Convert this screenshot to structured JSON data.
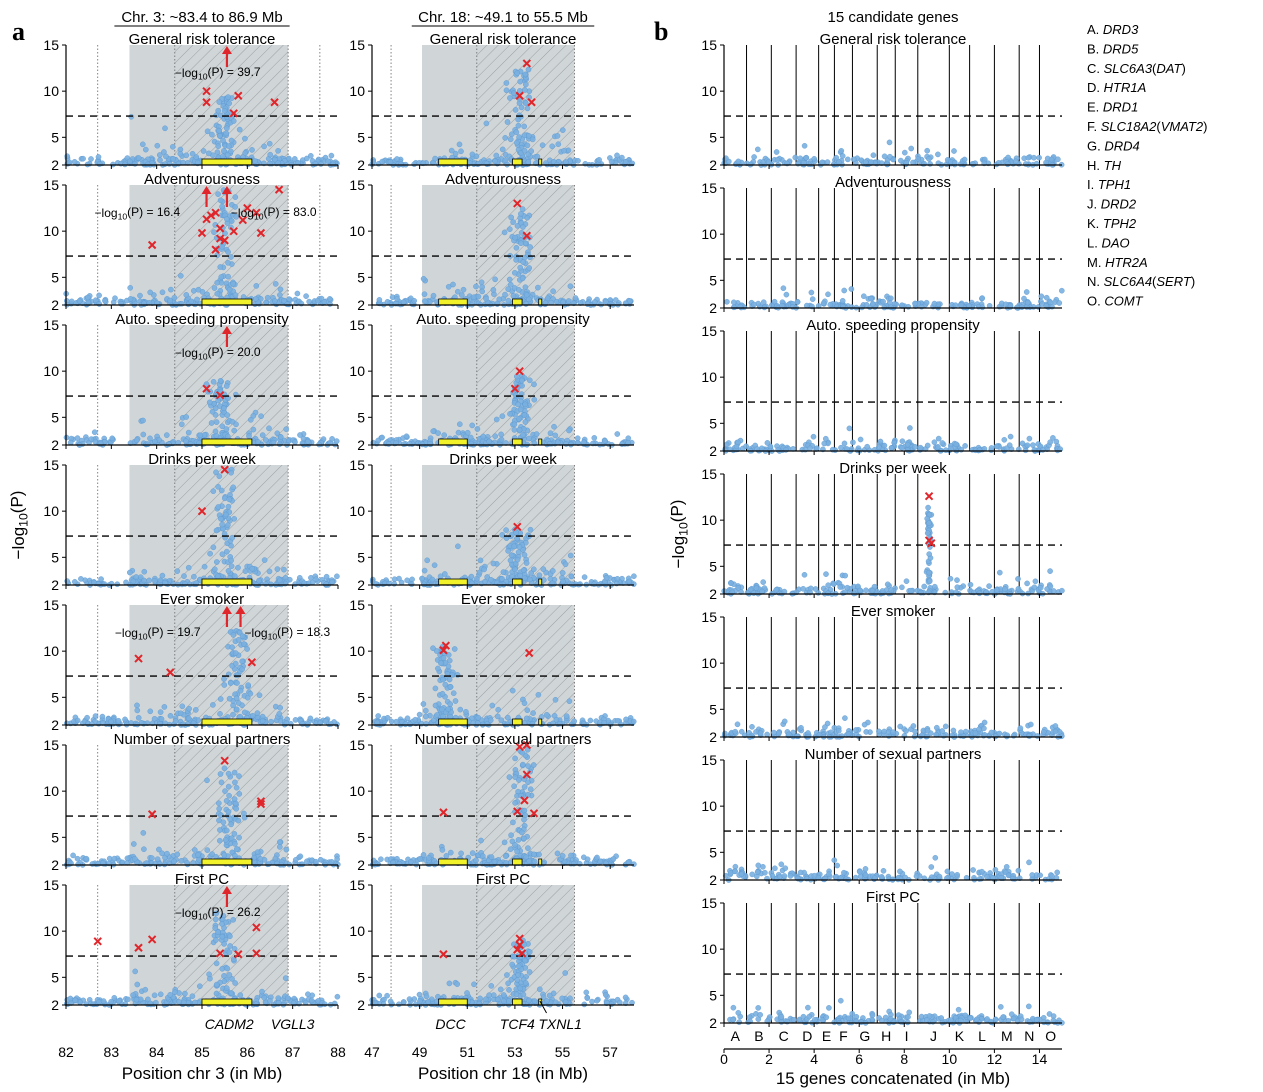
{
  "panel_labels": {
    "a": "a",
    "b": "b"
  },
  "legend": {
    "title": "15 candidate genes",
    "items": [
      {
        "key": "A.",
        "name": "DRD3",
        "paren": ""
      },
      {
        "key": "B.",
        "name": "DRD5",
        "paren": ""
      },
      {
        "key": "C.",
        "name": "SLC6A3",
        "paren": "DAT"
      },
      {
        "key": "D.",
        "name": "HTR1A",
        "paren": ""
      },
      {
        "key": "E.",
        "name": "DRD1",
        "paren": ""
      },
      {
        "key": "F.",
        "name": "SLC18A2",
        "paren": "VMAT2"
      },
      {
        "key": "G.",
        "name": "DRD4",
        "paren": ""
      },
      {
        "key": "H.",
        "name": "TH",
        "paren": ""
      },
      {
        "key": "I.",
        "name": "TPH1",
        "paren": ""
      },
      {
        "key": "J.",
        "name": "DRD2",
        "paren": ""
      },
      {
        "key": "K.",
        "name": "TPH2",
        "paren": ""
      },
      {
        "key": "L.",
        "name": "DAO",
        "paren": ""
      },
      {
        "key": "M.",
        "name": "HTR2A",
        "paren": ""
      },
      {
        "key": "N.",
        "name": "SLC6A4",
        "paren": "SERT"
      },
      {
        "key": "O.",
        "name": "COMT",
        "paren": ""
      }
    ]
  },
  "colors": {
    "points": "#7ab0e0",
    "point_edge": "#5b97cf",
    "hits": "#e0262b",
    "arrow": "#e0262b",
    "region_shade": "#d0d5d7",
    "gene_bar": "#f2f22a",
    "threshold": "#000000"
  },
  "chart_data": [
    {
      "type": "scatter",
      "panel": "a",
      "column_header": "Chr. 3: ~83.4 to 86.9 Mb",
      "xlabel": "Position chr 3 (in Mb)",
      "ylabel": "−log10(P)",
      "xlim": [
        82,
        88
      ],
      "ylim": [
        2,
        15
      ],
      "xticks": [
        82,
        83,
        84,
        85,
        86,
        87,
        88
      ],
      "yticks": [
        2,
        5,
        10,
        15
      ],
      "significance_threshold": 7.3,
      "shaded_region": [
        83.4,
        86.9
      ],
      "hatched_region": [
        84.4,
        86.9
      ],
      "dotted_lines": [
        82.7,
        84.4,
        86.9,
        87.6
      ],
      "gene_bars": [
        {
          "start": 85.0,
          "end": 86.1,
          "label": "CADM2"
        }
      ],
      "gene_labels": [
        {
          "text": "CADM2",
          "x": 85.6
        },
        {
          "text": "VGLL3",
          "x": 87.0
        }
      ],
      "traits": [
        {
          "name": "General risk tolerance",
          "peak": 85.5,
          "peak_height": 9.5,
          "hits": [
            [
              85.1,
              10.0
            ],
            [
              85.1,
              8.8
            ],
            [
              85.8,
              9.5
            ],
            [
              85.7,
              7.6
            ],
            [
              86.6,
              8.8
            ]
          ],
          "arrows": [
            {
              "x": 85.55,
              "label": "−log10(P) = 39.7"
            }
          ]
        },
        {
          "name": "Adventurousness",
          "peak": 85.5,
          "peak_height": 14.5,
          "hits": [
            [
              83.9,
              8.5
            ],
            [
              85.0,
              9.8
            ],
            [
              85.1,
              11.3
            ],
            [
              85.2,
              11.7
            ],
            [
              85.3,
              12.0
            ],
            [
              85.4,
              10.3
            ],
            [
              85.4,
              9.2
            ],
            [
              85.5,
              9.0
            ],
            [
              85.7,
              10.0
            ],
            [
              85.9,
              11.2
            ],
            [
              86.0,
              12.5
            ],
            [
              86.2,
              12.0
            ],
            [
              86.3,
              9.8
            ],
            [
              86.7,
              14.5
            ],
            [
              85.3,
              8.0
            ]
          ],
          "arrows": [
            {
              "x": 85.1,
              "label": "−log10(P) = 16.4"
            },
            {
              "x": 85.55,
              "label": "−log10(P) = 83.0"
            }
          ]
        },
        {
          "name": "Auto. speeding propensity",
          "peak": 85.4,
          "peak_height": 9.0,
          "hits": [
            [
              85.1,
              8.1
            ],
            [
              85.4,
              7.4
            ]
          ],
          "arrows": [
            {
              "x": 85.55,
              "label": "−log10(P) = 20.0"
            }
          ]
        },
        {
          "name": "Drinks per week",
          "peak": 85.5,
          "peak_height": 14.5,
          "hits": [
            [
              85.0,
              10.0
            ],
            [
              85.5,
              14.5
            ]
          ],
          "arrows": []
        },
        {
          "name": "Ever smoker",
          "peak": 85.8,
          "peak_height": 12.5,
          "hits": [
            [
              83.6,
              9.2
            ],
            [
              84.3,
              7.7
            ],
            [
              86.1,
              8.8
            ]
          ],
          "arrows": [
            {
              "x": 85.55,
              "label": "−log10(P) = 19.7"
            },
            {
              "x": 85.85,
              "label": "−log10(P) = 18.3"
            }
          ]
        },
        {
          "name": "Number of sexual partners",
          "peak": 85.6,
          "peak_height": 13.0,
          "hits": [
            [
              83.9,
              7.5
            ],
            [
              85.5,
              13.3
            ],
            [
              86.3,
              8.6
            ],
            [
              86.3,
              8.9
            ]
          ],
          "arrows": []
        },
        {
          "name": "First PC",
          "peak": 85.5,
          "peak_height": 12.0,
          "hits": [
            [
              82.7,
              8.9
            ],
            [
              83.6,
              8.2
            ],
            [
              83.9,
              9.1
            ],
            [
              85.4,
              7.6
            ],
            [
              85.8,
              7.5
            ],
            [
              86.2,
              10.4
            ],
            [
              86.2,
              7.6
            ]
          ],
          "arrows": [
            {
              "x": 85.55,
              "label": "−log10(P) = 26.2"
            }
          ]
        }
      ]
    },
    {
      "type": "scatter",
      "panel": "a",
      "column_header": "Chr. 18: ~49.1 to 55.5 Mb",
      "xlabel": "Position chr 18 (in Mb)",
      "ylabel": "",
      "xlim": [
        47,
        58
      ],
      "ylim": [
        2,
        15
      ],
      "xticks": [
        47,
        49,
        51,
        53,
        55,
        57
      ],
      "yticks": [
        2,
        5,
        10,
        15
      ],
      "significance_threshold": 7.3,
      "shaded_region": [
        49.1,
        55.5
      ],
      "hatched_region": [
        51.4,
        55.5
      ],
      "dotted_lines": [
        47.8,
        51.4,
        55.5
      ],
      "gene_bars": [
        {
          "start": 49.8,
          "end": 51.0,
          "label": "DCC"
        },
        {
          "start": 52.9,
          "end": 53.3,
          "label": "TCF4"
        },
        {
          "start": 54.0,
          "end": 54.1,
          "label": "TXNL1"
        }
      ],
      "gene_labels": [
        {
          "text": "DCC",
          "x": 50.3
        },
        {
          "text": "TCF4",
          "x": 53.1
        },
        {
          "text": "TXNL1",
          "x": 54.9
        }
      ],
      "traits": [
        {
          "name": "General risk tolerance",
          "peak": 53.2,
          "peak_height": 12.5,
          "hits": [
            [
              53.5,
              13.0
            ],
            [
              53.2,
              9.5
            ],
            [
              53.7,
              8.8
            ]
          ],
          "arrows": []
        },
        {
          "name": "Adventurousness",
          "peak": 53.2,
          "peak_height": 12.5,
          "hits": [
            [
              53.1,
              13.0
            ],
            [
              53.5,
              9.5
            ]
          ],
          "arrows": []
        },
        {
          "name": "Auto. speeding propensity",
          "peak": 53.2,
          "peak_height": 9.5,
          "hits": [
            [
              53.2,
              10.0
            ],
            [
              53.0,
              8.1
            ]
          ],
          "arrows": []
        },
        {
          "name": "Drinks per week",
          "peak": 53.1,
          "peak_height": 8.0,
          "hits": [
            [
              53.1,
              8.3
            ]
          ],
          "arrows": []
        },
        {
          "name": "Ever smoker",
          "peak": 50.1,
          "peak_height": 10.5,
          "hits": [
            [
              50.0,
              10.1
            ],
            [
              50.1,
              10.6
            ],
            [
              53.6,
              9.8
            ]
          ],
          "arrows": []
        },
        {
          "name": "Number of sexual partners",
          "peak": 53.3,
          "peak_height": 14.5,
          "hits": [
            [
              50.0,
              7.7
            ],
            [
              53.2,
              14.8
            ],
            [
              53.5,
              15.0
            ],
            [
              53.5,
              11.8
            ],
            [
              53.4,
              9.0
            ],
            [
              53.1,
              7.8
            ],
            [
              53.8,
              7.6
            ]
          ],
          "arrows": []
        },
        {
          "name": "First PC",
          "peak": 53.2,
          "peak_height": 9.0,
          "hits": [
            [
              50.0,
              7.5
            ],
            [
              53.2,
              9.2
            ],
            [
              53.2,
              8.5
            ],
            [
              53.1,
              8.0
            ],
            [
              53.3,
              7.6
            ]
          ],
          "arrows": []
        }
      ]
    },
    {
      "type": "scatter",
      "panel": "b",
      "column_header": "15 candidate genes",
      "xlabel": "15 genes concatenated (in Mb)",
      "ylabel": "−log10(P)",
      "xlim": [
        0,
        15
      ],
      "ylim": [
        2,
        15
      ],
      "xticks": [
        0,
        2,
        4,
        6,
        8,
        10,
        12,
        14
      ],
      "yticks": [
        2,
        5,
        10,
        15
      ],
      "significance_threshold": 7.3,
      "gene_boundaries": [
        1.0,
        2.1,
        3.2,
        4.2,
        4.9,
        5.7,
        6.8,
        7.6,
        8.6,
        10.0,
        10.9,
        12.0,
        13.1,
        14.0
      ],
      "gene_letters": [
        "A",
        "B",
        "C",
        "D",
        "E",
        "F",
        "G",
        "H",
        "I",
        "J",
        "K",
        "L",
        "M",
        "N",
        "O"
      ],
      "gene_letter_x": [
        0.5,
        1.55,
        2.65,
        3.7,
        4.55,
        5.3,
        6.25,
        7.2,
        8.1,
        9.3,
        10.45,
        11.45,
        12.55,
        13.55,
        14.5
      ],
      "traits": [
        {
          "name": "General risk tolerance",
          "hits": [],
          "arrows": []
        },
        {
          "name": "Adventurousness",
          "hits": [],
          "arrows": []
        },
        {
          "name": "Auto. speeding propensity",
          "hits": [],
          "arrows": []
        },
        {
          "name": "Drinks per week",
          "hits": [
            [
              9.1,
              12.6
            ],
            [
              9.1,
              7.8
            ],
            [
              9.2,
              7.5
            ]
          ],
          "arrows": []
        },
        {
          "name": "Ever smoker",
          "hits": [],
          "arrows": []
        },
        {
          "name": "Number of sexual partners",
          "hits": [],
          "arrows": []
        },
        {
          "name": "First PC",
          "hits": [],
          "arrows": []
        }
      ]
    }
  ]
}
